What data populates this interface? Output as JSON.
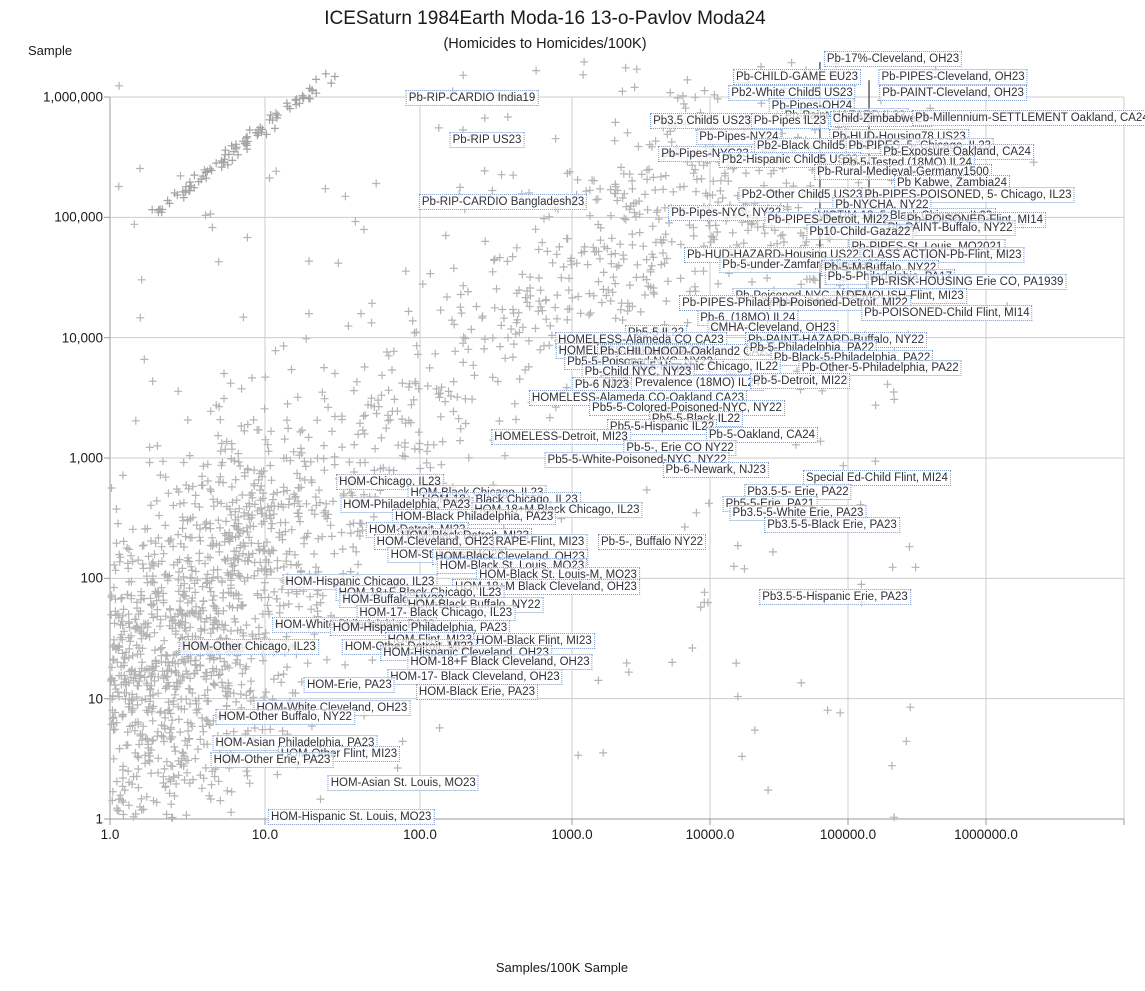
{
  "chart_data": {
    "type": "scatter",
    "title": "ICESaturn 1984Earth Moda-16 13-o-Pavlov Moda24",
    "subtitle": "(Homicides to Homicides/100K)",
    "xlabel": "Samples/100K Sample",
    "ylabel": "Sample",
    "x_scale": "log",
    "y_scale": "log",
    "xlim": [
      1,
      10000000
    ],
    "ylim": [
      1,
      1000000
    ],
    "grid": true,
    "marker": "plus",
    "marker_color": "#b4b4b4",
    "grid_color": "#cccccc",
    "axis_color": "#9b9b9b",
    "label_box_border_color": "#7b9cce",
    "label_text_color": "#30303a",
    "x_axis": {
      "label": "Samples/100K Sample",
      "ticks": [
        {
          "text": "1.0",
          "v": 1
        },
        {
          "text": "10.0",
          "v": 10
        },
        {
          "text": "100.0",
          "v": 100
        },
        {
          "text": "1000.0",
          "v": 1000
        },
        {
          "text": "10000.0",
          "v": 10000
        },
        {
          "text": "100000.0",
          "v": 100000
        },
        {
          "text": "1000000.0",
          "v": 1000000
        }
      ]
    },
    "y_axis": {
      "label": "Sample",
      "ticks": [
        {
          "text": "1,000,000",
          "v": 1000000
        },
        {
          "text": "100,000",
          "v": 100000
        },
        {
          "text": "10,000",
          "v": 10000
        },
        {
          "text": "1,000",
          "v": 1000
        },
        {
          "text": "100",
          "v": 100
        },
        {
          "text": "10",
          "v": 10
        },
        {
          "text": "1",
          "v": 1
        }
      ]
    },
    "labeled_points": [
      {
        "t": "Pb-17%-Cleveland, OH23",
        "x": 212000,
        "y": 2070000
      },
      {
        "t": "Pb-CHILD-GAME EU23",
        "x": 42700,
        "y": 1470000
      },
      {
        "t": "Pb-PIPES-Cleveland, OH23",
        "x": 577000,
        "y": 1470000
      },
      {
        "t": "Pb2-White Child5 US23",
        "x": 39300,
        "y": 1080000
      },
      {
        "t": "Pb-PAINT-Cleveland, OH23",
        "x": 577000,
        "y": 1080000
      },
      {
        "t": "Pb-RIP-CARDIO India19",
        "x": 220,
        "y": 980000
      },
      {
        "t": "Pb-Pipes-OH24",
        "x": 54800,
        "y": 842000
      },
      {
        "t": "Pb-Paint-HAZARD IL23",
        "x": 95100,
        "y": 695000
      },
      {
        "t": "Pb3.5 Child5 US23",
        "x": 8750,
        "y": 631000
      },
      {
        "t": "Pb-Pipes IL23",
        "x": 38000,
        "y": 631000
      },
      {
        "t": "Child-Zimbabwe23",
        "x": 173000,
        "y": 656000
      },
      {
        "t": "Pb-Millennium-SETTLEMENT Oakland, CA24",
        "x": 2150000,
        "y": 668000
      },
      {
        "t": "Pb-Pipes-NY24",
        "x": 16200,
        "y": 466000
      },
      {
        "t": "Pb-HUD-Housing78 US23",
        "x": 234000,
        "y": 466000
      },
      {
        "t": "Pb-RIP US23",
        "x": 276,
        "y": 440000
      },
      {
        "t": "Pb2-Black Child5 US23",
        "x": 59600,
        "y": 392000
      },
      {
        "t": "Pb-PIPES, 5- Chicago, IL23",
        "x": 331000,
        "y": 392000
      },
      {
        "t": "Pb-Pipes-NYC23",
        "x": 9200,
        "y": 336000
      },
      {
        "t": "Pb-Exposure Oakland, CA24",
        "x": 617000,
        "y": 349000
      },
      {
        "t": "Pb2-Hispanic Child5 US23",
        "x": 38000,
        "y": 300000
      },
      {
        "t": "Pb-5-Tested (18MO) IL24",
        "x": 268000,
        "y": 283000
      },
      {
        "t": "Pb-Rural-Medieval-Germany1500",
        "x": 250000,
        "y": 238000
      },
      {
        "t": "Pb Kabwe, Zambia24",
        "x": 567000,
        "y": 193000
      },
      {
        "t": "Pb2-Other Child5 US23",
        "x": 46400,
        "y": 153000
      },
      {
        "t": "Pb-PIPES-POISONED, 5- Chicago, IL23",
        "x": 741000,
        "y": 153000
      },
      {
        "t": "Pb-NYCHA, NY22",
        "x": 176000,
        "y": 126000
      },
      {
        "t": "Pb-RIP-CARDIO Bangladesh23",
        "x": 352,
        "y": 134000
      },
      {
        "t": "Pb-Pipes-NYC, NY22",
        "x": 13100,
        "y": 109000
      },
      {
        "t": "VICTIM-18, 5-Black Chicago, IL23",
        "x": 259000,
        "y": 103000
      },
      {
        "t": "Pb-PIPES-Detroit, MI22",
        "x": 71600,
        "y": 95100
      },
      {
        "t": "Pb-POISONED-Flint, MI14",
        "x": 832000,
        "y": 95100
      },
      {
        "t": "Pb-PAINT-Buffalo, NY22",
        "x": 549000,
        "y": 81500
      },
      {
        "t": "Pb10-Child-Gaza22",
        "x": 122000,
        "y": 75500
      },
      {
        "t": "Pb-PIPES-St. Louis, MO2021",
        "x": 373000,
        "y": 56600
      },
      {
        "t": "Pb-HUD-HAZARD-Housing US22",
        "x": 28600,
        "y": 48600
      },
      {
        "t": "CLASS ACTION-Pb-Flint, MI23",
        "x": 480000,
        "y": 48600
      },
      {
        "t": "Pb-5-under-Zamfara-Nigeria23",
        "x": 45600,
        "y": 40200
      },
      {
        "t": "Pb-5-M-Buffalo, NY22",
        "x": 171000,
        "y": 37900
      },
      {
        "t": "Pb-5-Philadelphia, PA17",
        "x": 201000,
        "y": 31900
      },
      {
        "t": "Pb-RISK-HOUSING Erie CO, PA1939",
        "x": 728000,
        "y": 29000
      },
      {
        "t": "Pb-Poisoned-NYC, NY22",
        "x": 44900,
        "y": 22200
      },
      {
        "t": "DEMOLISH-Flint, MI23",
        "x": 259000,
        "y": 22200
      },
      {
        "t": "Pb-PIPES-Philadelphia, PA21",
        "x": 22300,
        "y": 19400
      },
      {
        "t": "Pb-Poisoned-Detroit, MI22",
        "x": 87500,
        "y": 19400
      },
      {
        "t": "Pb-POISONED-Child Flint, MI14",
        "x": 521000,
        "y": 16000
      },
      {
        "t": "Pb-6, (18MO) IL24",
        "x": 18800,
        "y": 14600
      },
      {
        "t": "CMHA-Cleveland, OH23",
        "x": 28600,
        "y": 12000
      },
      {
        "t": "Pb5-5 IL22",
        "x": 4060,
        "y": 10900
      },
      {
        "t": "HOMELESS-Alameda CO CA23",
        "x": 3160,
        "y": 9550
      },
      {
        "t": "Pb-PAINT-HAZARD-Buffalo, NY22",
        "x": 81900,
        "y": 9550
      },
      {
        "t": "HOMELESS-Oakland CA23",
        "x": 2630,
        "y": 7750
      },
      {
        "t": "Pb-CHILDHOOD-Oakland2 CA23",
        "x": 6700,
        "y": 7600
      },
      {
        "t": "Pb-5-Philadelphia, PA22",
        "x": 54800,
        "y": 8200
      },
      {
        "t": "Pb5-5-Poisoned-NYC, NY22",
        "x": 3110,
        "y": 6280
      },
      {
        "t": "Pb-Black-5-Philadelphia, PA22",
        "x": 107000,
        "y": 6780
      },
      {
        "t": "Pb-5-Hispanic Chicago, IL22",
        "x": 9200,
        "y": 5700
      },
      {
        "t": "Pb-Other-5-Philadelphia, PA22",
        "x": 171000,
        "y": 5600
      },
      {
        "t": "Pb-Child NYC, NY23",
        "x": 3010,
        "y": 5190
      },
      {
        "t": "Pb-5- Prevalence (18MO) IL24",
        "x": 6270,
        "y": 4200
      },
      {
        "t": "Pb-5-Detroit, MI22",
        "x": 44900,
        "y": 4360
      },
      {
        "t": "Pb-6 NJ23",
        "x": 1650,
        "y": 4040
      },
      {
        "t": "HOMELESS-Alameda CO-Oakland CA23",
        "x": 3010,
        "y": 3160
      },
      {
        "t": "Pb5-5-Colored-Poisoned-NYC, NY22",
        "x": 6810,
        "y": 2610
      },
      {
        "t": "Pb5-5-Black IL22",
        "x": 7920,
        "y": 2110
      },
      {
        "t": "Pb5-5-Hispanic IL22",
        "x": 4490,
        "y": 1810
      },
      {
        "t": "HOMELESS-Detroit, MI23",
        "x": 847,
        "y": 1500
      },
      {
        "t": "Pb-5-Oakland, CA24",
        "x": 23800,
        "y": 1550
      },
      {
        "t": "Pb-5-, Erie CO NY22",
        "x": 6070,
        "y": 1210
      },
      {
        "t": "Pb5-5-White-Poisoned-NYC, NY22",
        "x": 2960,
        "y": 962
      },
      {
        "t": "Pb-6-Newark, NJ23",
        "x": 11000,
        "y": 795
      },
      {
        "t": "Special Ed-Child Flint, MI24",
        "x": 162000,
        "y": 682
      },
      {
        "t": "HOM-Chicago, IL23",
        "x": 64,
        "y": 631
      },
      {
        "t": "Pb3.5-5- Erie, PA22",
        "x": 43400,
        "y": 521
      },
      {
        "t": "HOM-Black Chicago, IL23",
        "x": 237,
        "y": 512
      },
      {
        "t": "HOM-18+ Black Chicago, IL23",
        "x": 336,
        "y": 448
      },
      {
        "t": "Pb5-5-Erie, PA21",
        "x": 27200,
        "y": 415
      },
      {
        "t": "HOM-Philadelphia, PA23",
        "x": 82,
        "y": 407
      },
      {
        "t": "HOM-18+M Black Chicago, IL23",
        "x": 796,
        "y": 370
      },
      {
        "t": "Pb3.5-5-White Erie, PA23",
        "x": 43400,
        "y": 349
      },
      {
        "t": "HOM-Black Philadelphia, PA23",
        "x": 227,
        "y": 324
      },
      {
        "t": "Pb3.5-5-Black Erie, PA23",
        "x": 76600,
        "y": 277
      },
      {
        "t": "HOM-Detroit, MI23",
        "x": 96,
        "y": 252
      },
      {
        "t": "HOM-Black Detroit, MI23",
        "x": 198,
        "y": 225
      },
      {
        "t": "HOM-Cleveland, OH23",
        "x": 127,
        "y": 200
      },
      {
        "t": "RAPE-Flint, MI23",
        "x": 615,
        "y": 200
      },
      {
        "t": "Pb-5-, Buffalo NY22",
        "x": 3800,
        "y": 200
      },
      {
        "t": "HOM-St. Louis, MO23",
        "x": 151,
        "y": 156
      },
      {
        "t": "HOM-Black Cleveland, OH23",
        "x": 391,
        "y": 150
      },
      {
        "t": "HOM-Black St. Louis, MO23",
        "x": 403,
        "y": 126
      },
      {
        "t": "HOM-Black St. Louis-M, MO23",
        "x": 809,
        "y": 107
      },
      {
        "t": "HOM-Hispanic Chicago, IL23",
        "x": 41,
        "y": 93
      },
      {
        "t": "HOM-18+M Black Cleveland, OH23",
        "x": 674,
        "y": 85
      },
      {
        "t": "HOM-18+F Black Chicago, IL23",
        "x": 100,
        "y": 76
      },
      {
        "t": "HOM-Buffalo, NY22",
        "x": 67,
        "y": 66
      },
      {
        "t": "HOM-Black Buffalo, NY22",
        "x": 227,
        "y": 60
      },
      {
        "t": "Pb3.5-5-Hispanic Erie, PA23",
        "x": 80500,
        "y": 70
      },
      {
        "t": "HOM-17- Black Chicago, IL23",
        "x": 127,
        "y": 52
      },
      {
        "t": "HOM-White Philadelphia, PA23",
        "x": 38,
        "y": 41
      },
      {
        "t": "HOM-Hispanic Philadelphia, PA23",
        "x": 100,
        "y": 39
      },
      {
        "t": "HOM-Flint, MI23",
        "x": 116,
        "y": 31
      },
      {
        "t": "HOM-Black Flint, MI23",
        "x": 562,
        "y": 30
      },
      {
        "t": "HOM-Other Chicago, IL23",
        "x": 7.9,
        "y": 27
      },
      {
        "t": "HOM-Other Detroit, MI23",
        "x": 85,
        "y": 27
      },
      {
        "t": "HOM-Hispanic Cleveland, OH23",
        "x": 201,
        "y": 24
      },
      {
        "t": "HOM-18+F Black Cleveland, OH23",
        "x": 336,
        "y": 20
      },
      {
        "t": "HOM-17- Black Cleveland, OH23",
        "x": 230,
        "y": 15
      },
      {
        "t": "HOM-Erie, PA23",
        "x": 35,
        "y": 13
      },
      {
        "t": "HOM-Black Erie, PA23",
        "x": 237,
        "y": 11.4
      },
      {
        "t": "HOM-White Cleveland, OH23",
        "x": 27,
        "y": 8.4
      },
      {
        "t": "HOM-Other Buffalo, NY22",
        "x": 13.5,
        "y": 7
      },
      {
        "t": "HOM-Asian Philadelphia, PA23",
        "x": 15.6,
        "y": 4.3
      },
      {
        "t": "HOM-Other Flint, MI23",
        "x": 30,
        "y": 3.5
      },
      {
        "t": "HOM-Other Erie, PA23",
        "x": 11.1,
        "y": 3.1
      },
      {
        "t": "HOM-Asian St. Louis, MO23",
        "x": 78,
        "y": 2
      },
      {
        "t": "HOM-Hispanic St. Louis, MO23",
        "x": 36,
        "y": 1.04
      }
    ],
    "vertical_segments": [
      {
        "x": 62600,
        "y1": 1950000,
        "y2": 17700
      },
      {
        "x": 142000,
        "y1": 1380000,
        "y2": 126000
      }
    ],
    "background_scatter": {
      "seed": 1337,
      "clusters": [
        {
          "type": "gauss-band",
          "n": 1100,
          "lx_mean": 0.55,
          "lx_sd": 0.45,
          "lx_min": 0,
          "lx_max": 2.2,
          "slope": 1.05,
          "intercept": 0.85,
          "noise": 0.8
        },
        {
          "type": "uniform-band",
          "n": 750,
          "lx_max": 5.0,
          "lx_pow": 1.35,
          "slope": 1.1,
          "intercept": 1.15,
          "soft_cap": 5.2,
          "noise": 0.5
        },
        {
          "type": "blob",
          "n": 320,
          "lx_mean": 4.1,
          "lx_sd": 0.8,
          "ly_mean": 4.85,
          "ly_sd": 0.7
        },
        {
          "type": "uniform",
          "n": 170,
          "lx_max": 5.5,
          "ly_max": 6.2
        }
      ],
      "streak": {
        "lx1": 0.29,
        "ly1": 5.02,
        "lx2": 1.42,
        "ly2": 6.18,
        "n": 90,
        "jitter": 0.025
      }
    }
  }
}
